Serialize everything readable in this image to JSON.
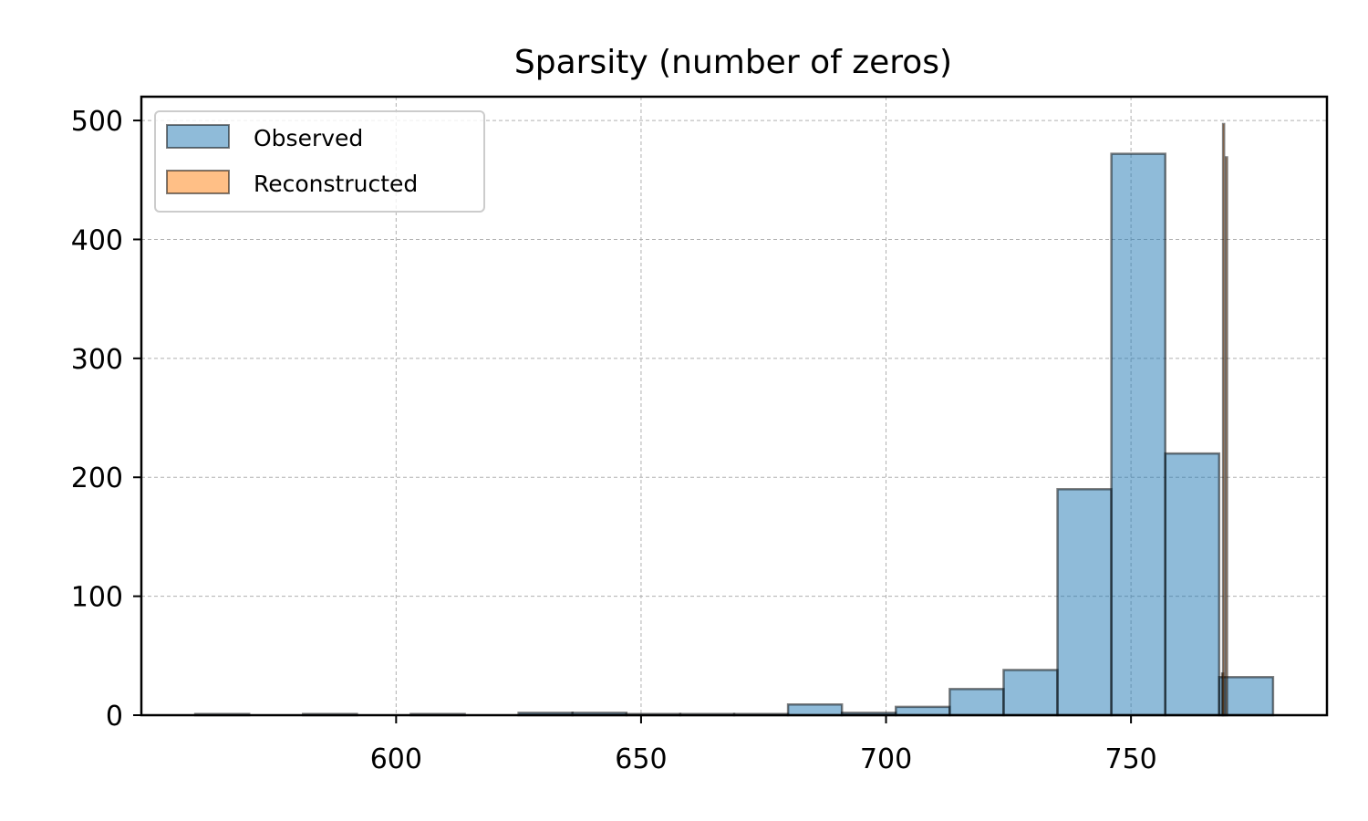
{
  "chart_data": {
    "type": "bar",
    "title": "Sparsity (number of zeros)",
    "xlabel": "",
    "ylabel": "",
    "xlim": [
      548,
      790
    ],
    "ylim": [
      0,
      520
    ],
    "xticks": [
      600,
      650,
      700,
      750
    ],
    "yticks": [
      0,
      100,
      200,
      300,
      400,
      500
    ],
    "grid": true,
    "legend_position": "top-left",
    "series": [
      {
        "name": "Observed",
        "color": "#1f77b4",
        "bins": [
          {
            "x0": 559.0,
            "x1": 570.0,
            "value": 1
          },
          {
            "x0": 570.0,
            "x1": 581.0,
            "value": 0
          },
          {
            "x0": 581.0,
            "x1": 592.0,
            "value": 1
          },
          {
            "x0": 592.0,
            "x1": 603.0,
            "value": 0
          },
          {
            "x0": 603.0,
            "x1": 614.0,
            "value": 1
          },
          {
            "x0": 614.0,
            "x1": 625.0,
            "value": 0
          },
          {
            "x0": 625.0,
            "x1": 636.0,
            "value": 2
          },
          {
            "x0": 636.0,
            "x1": 647.0,
            "value": 2
          },
          {
            "x0": 647.0,
            "x1": 658.0,
            "value": 1
          },
          {
            "x0": 658.0,
            "x1": 669.0,
            "value": 1
          },
          {
            "x0": 669.0,
            "x1": 680.0,
            "value": 1
          },
          {
            "x0": 680.0,
            "x1": 691.0,
            "value": 9
          },
          {
            "x0": 691.0,
            "x1": 702.0,
            "value": 2
          },
          {
            "x0": 702.0,
            "x1": 713.0,
            "value": 7
          },
          {
            "x0": 713.0,
            "x1": 724.0,
            "value": 22
          },
          {
            "x0": 724.0,
            "x1": 735.0,
            "value": 38
          },
          {
            "x0": 735.0,
            "x1": 746.0,
            "value": 190
          },
          {
            "x0": 746.0,
            "x1": 757.0,
            "value": 472
          },
          {
            "x0": 757.0,
            "x1": 768.0,
            "value": 220
          },
          {
            "x0": 768.0,
            "x1": 779.0,
            "value": 32
          }
        ]
      },
      {
        "name": "Reconstructed",
        "color": "#ff7f0e",
        "bins": [
          {
            "x0": 768.6,
            "x1": 768.8,
            "value": 35
          },
          {
            "x0": 768.8,
            "x1": 769.0,
            "value": 497
          },
          {
            "x0": 769.0,
            "x1": 769.2,
            "value": 0
          },
          {
            "x0": 769.2,
            "x1": 769.4,
            "value": 0
          },
          {
            "x0": 769.4,
            "x1": 769.6,
            "value": 469
          }
        ]
      }
    ]
  }
}
